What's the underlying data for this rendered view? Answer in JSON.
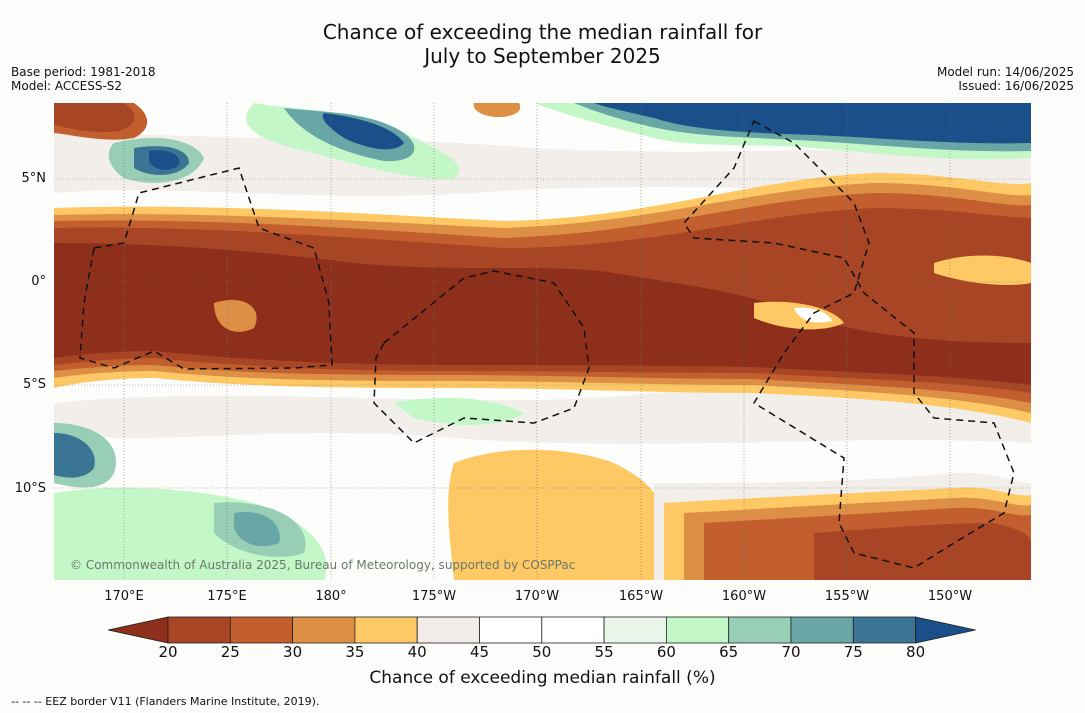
{
  "title": {
    "line1": "Chance of exceeding the median rainfall for",
    "line2": "July to September 2025"
  },
  "meta_left": {
    "base_period": "Base period: 1981-2018",
    "model": "Model: ACCESS-S2"
  },
  "meta_right": {
    "model_run": "Model run: 14/06/2025",
    "issued": "Issued: 16/06/2025"
  },
  "map": {
    "lat_labels": [
      "5°N",
      "0°",
      "5°S",
      "10°S"
    ],
    "lon_labels": [
      "170°E",
      "175°E",
      "180°",
      "175°W",
      "170°W",
      "165°W",
      "160°W",
      "155°W",
      "150°W"
    ],
    "copyright": "© Commonwealth of Australia 2025, Bureau of Meteorology, supported by COSPPac"
  },
  "colorbar": {
    "ticks": [
      "20",
      "25",
      "30",
      "35",
      "40",
      "45",
      "50",
      "55",
      "60",
      "65",
      "70",
      "75",
      "80"
    ],
    "colors": [
      "#8e2f1c",
      "#a84524",
      "#c35f2e",
      "#dd8f46",
      "#fec865",
      "#f1ece7",
      "#ffffff",
      "#ffffff",
      "#eaf5ea",
      "#c3f7c8",
      "#98ceb6",
      "#69a7a6",
      "#3b7596",
      "#1a4f8a"
    ],
    "label": "Chance of exceeding median rainfall (%)"
  },
  "footnote": "--  --  -- EEZ border V11 (Flanders Marine Institute, 2019)."
}
